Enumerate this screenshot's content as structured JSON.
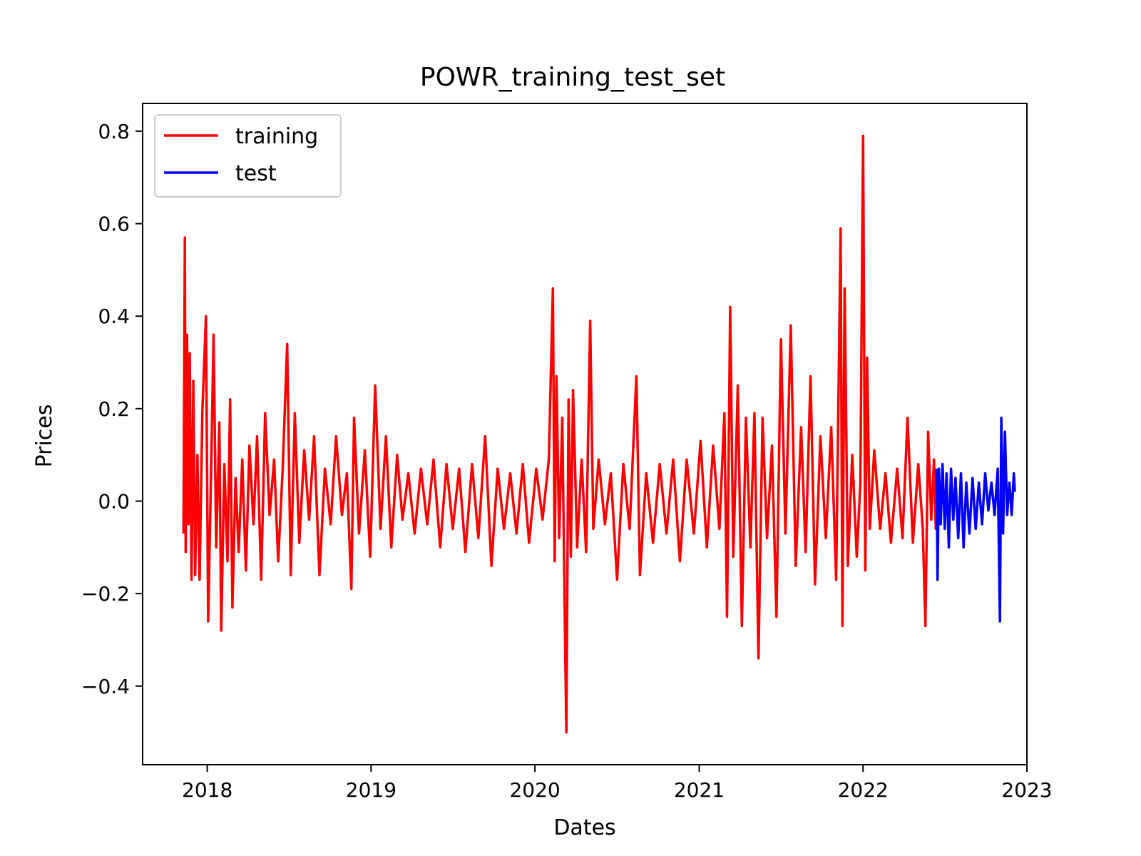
{
  "chart_data": {
    "type": "line",
    "title": "POWR_training_test_set",
    "xlabel": "Dates",
    "ylabel": "Prices",
    "xlim": [
      "2017-08-10",
      "2023-01-01"
    ],
    "ylim": [
      -0.57,
      0.86
    ],
    "x_ticks": [
      "2018",
      "2019",
      "2020",
      "2021",
      "2022",
      "2023"
    ],
    "y_ticks": [
      -0.4,
      -0.2,
      0.0,
      0.2,
      0.4,
      0.6,
      0.8
    ],
    "y_tick_labels": [
      "−0.4",
      "−0.2",
      "0.0",
      "0.2",
      "0.4",
      "0.6",
      "0.8"
    ],
    "grid": false,
    "legend_position": "top-left",
    "series": [
      {
        "name": "training",
        "color": "#ff0000",
        "points": [
          [
            "2017-11-09",
            -0.07
          ],
          [
            "2017-11-12",
            0.57
          ],
          [
            "2017-11-14",
            -0.11
          ],
          [
            "2017-11-17",
            0.36
          ],
          [
            "2017-11-20",
            -0.05
          ],
          [
            "2017-11-23",
            0.32
          ],
          [
            "2017-11-27",
            -0.17
          ],
          [
            "2017-12-01",
            0.26
          ],
          [
            "2017-12-05",
            -0.16
          ],
          [
            "2017-12-10",
            0.1
          ],
          [
            "2017-12-15",
            -0.17
          ],
          [
            "2017-12-21",
            0.19
          ],
          [
            "2017-12-29",
            0.4
          ],
          [
            "2018-01-03",
            -0.26
          ],
          [
            "2018-01-10",
            0.09
          ],
          [
            "2018-01-15",
            0.36
          ],
          [
            "2018-01-21",
            -0.1
          ],
          [
            "2018-01-28",
            0.17
          ],
          [
            "2018-02-01",
            -0.28
          ],
          [
            "2018-02-08",
            0.08
          ],
          [
            "2018-02-15",
            -0.13
          ],
          [
            "2018-02-21",
            0.22
          ],
          [
            "2018-02-26",
            -0.23
          ],
          [
            "2018-03-05",
            0.05
          ],
          [
            "2018-03-12",
            -0.11
          ],
          [
            "2018-03-20",
            0.09
          ],
          [
            "2018-03-28",
            -0.15
          ],
          [
            "2018-04-05",
            0.12
          ],
          [
            "2018-04-14",
            -0.05
          ],
          [
            "2018-04-22",
            0.14
          ],
          [
            "2018-05-01",
            -0.17
          ],
          [
            "2018-05-10",
            0.19
          ],
          [
            "2018-05-20",
            -0.03
          ],
          [
            "2018-05-30",
            0.09
          ],
          [
            "2018-06-08",
            -0.13
          ],
          [
            "2018-06-18",
            0.07
          ],
          [
            "2018-06-28",
            0.34
          ],
          [
            "2018-07-06",
            -0.16
          ],
          [
            "2018-07-15",
            0.19
          ],
          [
            "2018-07-25",
            -0.09
          ],
          [
            "2018-08-05",
            0.11
          ],
          [
            "2018-08-16",
            -0.04
          ],
          [
            "2018-08-27",
            0.14
          ],
          [
            "2018-09-08",
            -0.16
          ],
          [
            "2018-09-20",
            0.07
          ],
          [
            "2018-10-03",
            -0.05
          ],
          [
            "2018-10-15",
            0.14
          ],
          [
            "2018-10-28",
            -0.03
          ],
          [
            "2018-11-08",
            0.06
          ],
          [
            "2018-11-18",
            -0.19
          ],
          [
            "2018-11-24",
            0.18
          ],
          [
            "2018-12-05",
            -0.07
          ],
          [
            "2018-12-18",
            0.11
          ],
          [
            "2018-12-30",
            -0.12
          ],
          [
            "2019-01-10",
            0.25
          ],
          [
            "2019-01-22",
            -0.06
          ],
          [
            "2019-02-03",
            0.14
          ],
          [
            "2019-02-15",
            -0.1
          ],
          [
            "2019-02-28",
            0.1
          ],
          [
            "2019-03-12",
            -0.04
          ],
          [
            "2019-03-25",
            0.06
          ],
          [
            "2019-04-08",
            -0.07
          ],
          [
            "2019-04-22",
            0.07
          ],
          [
            "2019-05-06",
            -0.05
          ],
          [
            "2019-05-20",
            0.09
          ],
          [
            "2019-06-04",
            -0.1
          ],
          [
            "2019-06-18",
            0.08
          ],
          [
            "2019-07-02",
            -0.06
          ],
          [
            "2019-07-16",
            0.07
          ],
          [
            "2019-07-30",
            -0.11
          ],
          [
            "2019-08-14",
            0.08
          ],
          [
            "2019-08-28",
            -0.08
          ],
          [
            "2019-09-12",
            0.14
          ],
          [
            "2019-09-26",
            -0.14
          ],
          [
            "2019-10-10",
            0.07
          ],
          [
            "2019-10-24",
            -0.06
          ],
          [
            "2019-11-07",
            0.06
          ],
          [
            "2019-11-21",
            -0.07
          ],
          [
            "2019-12-05",
            0.08
          ],
          [
            "2019-12-19",
            -0.09
          ],
          [
            "2020-01-04",
            0.07
          ],
          [
            "2020-01-18",
            -0.04
          ],
          [
            "2020-02-01",
            0.09
          ],
          [
            "2020-02-10",
            0.46
          ],
          [
            "2020-02-14",
            -0.13
          ],
          [
            "2020-02-18",
            0.27
          ],
          [
            "2020-02-24",
            -0.08
          ],
          [
            "2020-03-02",
            0.18
          ],
          [
            "2020-03-07",
            -0.22
          ],
          [
            "2020-03-11",
            -0.5
          ],
          [
            "2020-03-16",
            0.22
          ],
          [
            "2020-03-21",
            -0.12
          ],
          [
            "2020-03-26",
            0.24
          ],
          [
            "2020-04-04",
            -0.1
          ],
          [
            "2020-04-14",
            0.09
          ],
          [
            "2020-04-24",
            -0.11
          ],
          [
            "2020-05-03",
            0.39
          ],
          [
            "2020-05-10",
            -0.06
          ],
          [
            "2020-05-22",
            0.09
          ],
          [
            "2020-06-05",
            -0.05
          ],
          [
            "2020-06-18",
            0.06
          ],
          [
            "2020-07-02",
            -0.17
          ],
          [
            "2020-07-16",
            0.08
          ],
          [
            "2020-07-30",
            -0.06
          ],
          [
            "2020-08-14",
            0.27
          ],
          [
            "2020-08-22",
            -0.16
          ],
          [
            "2020-09-05",
            0.06
          ],
          [
            "2020-09-20",
            -0.09
          ],
          [
            "2020-10-05",
            0.08
          ],
          [
            "2020-10-20",
            -0.07
          ],
          [
            "2020-11-04",
            0.09
          ],
          [
            "2020-11-19",
            -0.13
          ],
          [
            "2020-12-04",
            0.09
          ],
          [
            "2020-12-20",
            -0.07
          ],
          [
            "2021-01-04",
            0.13
          ],
          [
            "2021-01-18",
            -0.1
          ],
          [
            "2021-02-01",
            0.12
          ],
          [
            "2021-02-15",
            -0.06
          ],
          [
            "2021-02-26",
            0.19
          ],
          [
            "2021-03-04",
            -0.25
          ],
          [
            "2021-03-11",
            0.42
          ],
          [
            "2021-03-18",
            -0.12
          ],
          [
            "2021-03-28",
            0.25
          ],
          [
            "2021-04-06",
            -0.27
          ],
          [
            "2021-04-15",
            0.18
          ],
          [
            "2021-04-25",
            -0.1
          ],
          [
            "2021-05-04",
            0.19
          ],
          [
            "2021-05-13",
            -0.34
          ],
          [
            "2021-05-22",
            0.18
          ],
          [
            "2021-06-01",
            -0.08
          ],
          [
            "2021-06-12",
            0.12
          ],
          [
            "2021-06-22",
            -0.25
          ],
          [
            "2021-07-02",
            0.35
          ],
          [
            "2021-07-12",
            -0.07
          ],
          [
            "2021-07-24",
            0.38
          ],
          [
            "2021-08-04",
            -0.14
          ],
          [
            "2021-08-16",
            0.16
          ],
          [
            "2021-08-26",
            -0.11
          ],
          [
            "2021-09-06",
            0.27
          ],
          [
            "2021-09-16",
            -0.18
          ],
          [
            "2021-09-28",
            0.14
          ],
          [
            "2021-10-10",
            -0.08
          ],
          [
            "2021-10-22",
            0.16
          ],
          [
            "2021-11-02",
            -0.17
          ],
          [
            "2021-11-12",
            0.59
          ],
          [
            "2021-11-16",
            -0.27
          ],
          [
            "2021-11-21",
            0.46
          ],
          [
            "2021-11-28",
            -0.14
          ],
          [
            "2021-12-08",
            0.1
          ],
          [
            "2021-12-18",
            -0.12
          ],
          [
            "2021-12-26",
            0.04
          ],
          [
            "2022-01-01",
            0.79
          ],
          [
            "2022-01-06",
            -0.15
          ],
          [
            "2022-01-10",
            0.31
          ],
          [
            "2022-01-16",
            -0.06
          ],
          [
            "2022-01-26",
            0.11
          ],
          [
            "2022-02-08",
            -0.06
          ],
          [
            "2022-02-20",
            0.06
          ],
          [
            "2022-03-04",
            -0.09
          ],
          [
            "2022-03-18",
            0.07
          ],
          [
            "2022-03-30",
            -0.08
          ],
          [
            "2022-04-10",
            0.18
          ],
          [
            "2022-04-22",
            -0.09
          ],
          [
            "2022-05-04",
            0.08
          ],
          [
            "2022-05-14",
            -0.06
          ],
          [
            "2022-05-20",
            -0.27
          ],
          [
            "2022-05-26",
            0.15
          ],
          [
            "2022-06-02",
            -0.04
          ],
          [
            "2022-06-08",
            0.09
          ],
          [
            "2022-06-12",
            -0.06
          ],
          [
            "2022-06-14",
            0.07
          ]
        ]
      },
      {
        "name": "test",
        "color": "#0000ff",
        "points": [
          [
            "2022-06-14",
            0.07
          ],
          [
            "2022-06-16",
            -0.17
          ],
          [
            "2022-06-19",
            0.07
          ],
          [
            "2022-06-23",
            -0.05
          ],
          [
            "2022-06-27",
            0.08
          ],
          [
            "2022-07-02",
            -0.06
          ],
          [
            "2022-07-06",
            0.06
          ],
          [
            "2022-07-11",
            -0.1
          ],
          [
            "2022-07-16",
            0.07
          ],
          [
            "2022-07-21",
            -0.04
          ],
          [
            "2022-07-26",
            0.05
          ],
          [
            "2022-08-01",
            -0.08
          ],
          [
            "2022-08-07",
            0.06
          ],
          [
            "2022-08-13",
            -0.1
          ],
          [
            "2022-08-19",
            0.04
          ],
          [
            "2022-08-26",
            -0.07
          ],
          [
            "2022-09-02",
            0.05
          ],
          [
            "2022-09-09",
            -0.06
          ],
          [
            "2022-09-16",
            0.04
          ],
          [
            "2022-09-23",
            -0.05
          ],
          [
            "2022-09-30",
            0.06
          ],
          [
            "2022-10-07",
            -0.02
          ],
          [
            "2022-10-14",
            0.04
          ],
          [
            "2022-10-21",
            -0.03
          ],
          [
            "2022-10-28",
            0.07
          ],
          [
            "2022-11-02",
            -0.26
          ],
          [
            "2022-11-05",
            0.18
          ],
          [
            "2022-11-09",
            -0.07
          ],
          [
            "2022-11-13",
            0.15
          ],
          [
            "2022-11-18",
            -0.03
          ],
          [
            "2022-11-23",
            0.04
          ],
          [
            "2022-11-28",
            -0.03
          ],
          [
            "2022-12-03",
            0.06
          ],
          [
            "2022-12-05",
            0.02
          ]
        ]
      }
    ]
  }
}
